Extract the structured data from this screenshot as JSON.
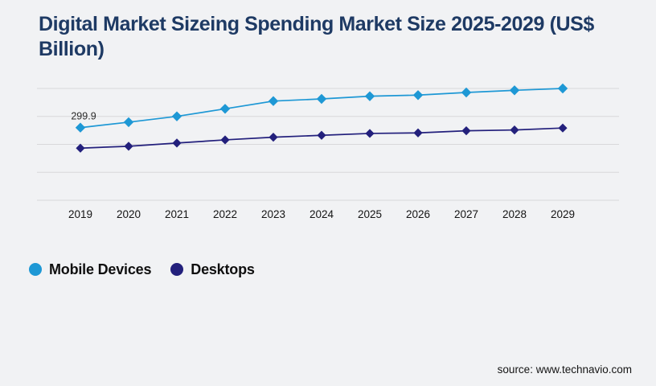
{
  "page": {
    "title": "Digital Market Sizeing Spending Market Size 2025-2029 (US$ Billion)",
    "source": "source: www.technavio.com",
    "background_color": "#f1f2f4",
    "title_color": "#1e3a64"
  },
  "chart_data": {
    "type": "line",
    "title": "Digital Market Sizeing Spending Market Size 2025-2029 (US$ Billion)",
    "categories": [
      "2019",
      "2020",
      "2021",
      "2022",
      "2023",
      "2024",
      "2025",
      "2026",
      "2027",
      "2028",
      "2029"
    ],
    "series": [
      {
        "name": "Mobile Devices",
        "color": "#1e98d5",
        "marker": "diamond",
        "values": [
          299.9,
          309.7,
          320.1,
          333.6,
          347.4,
          351.3,
          356.1,
          358.1,
          362.8,
          366.7,
          370.0
        ]
      },
      {
        "name": "Desktops",
        "color": "#23207c",
        "marker": "diamond",
        "values": [
          263.2,
          266.6,
          272.3,
          278.0,
          282.8,
          286.2,
          289.5,
          290.5,
          294.3,
          295.7,
          299.2
        ]
      }
    ],
    "data_labels": [
      {
        "series": 0,
        "index": 0,
        "text": "299.9"
      }
    ],
    "xlabel": "",
    "ylabel": "",
    "ylim": [
      170,
      370
    ],
    "y_grid_step": 50,
    "y_axis_labels_visible": false,
    "grid": true,
    "grid_color": "#d8d8da",
    "legend_position": "bottom-left",
    "axis_label_color": "#141414",
    "data_label_color": "#2a2a2a"
  }
}
